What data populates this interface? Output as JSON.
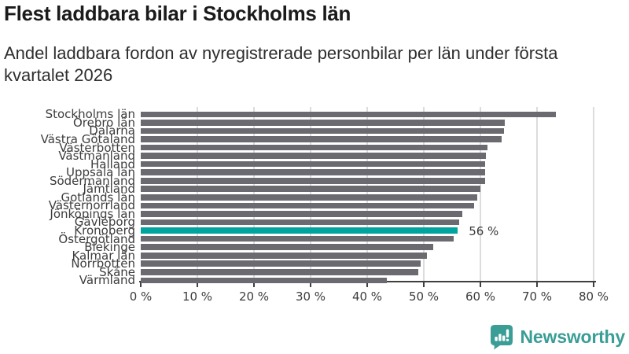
{
  "header": {
    "title": "Flest laddbara bilar i Stockholms län",
    "subtitle": "Andel laddbara fordon av nyregistrerade personbilar per län under första kvartalet 2026"
  },
  "chart_data": {
    "type": "bar",
    "orientation": "horizontal",
    "title": "Flest laddbara bilar i Stockholms län",
    "subtitle": "Andel laddbara fordon av nyregistrerade personbilar per län under första kvartalet 2026",
    "xlabel": "",
    "ylabel": "",
    "xlim": [
      0,
      80
    ],
    "grid": true,
    "x_ticks": [
      "0 %",
      "10 %",
      "20 %",
      "30 %",
      "40 %",
      "50 %",
      "60 %",
      "70 %",
      "80 %"
    ],
    "categories": [
      "Stockholms län",
      "Örebro län",
      "Dalarna",
      "Västra Götaland",
      "Västerbotten",
      "Västmanland",
      "Halland",
      "Uppsala län",
      "Södermanland",
      "Jämtland",
      "Gotlands län",
      "Västernorrland",
      "Jönköpings län",
      "Gävleborg",
      "Kronoberg",
      "Östergötland",
      "Blekinge",
      "Kalmar län",
      "Norrbotten",
      "Skåne",
      "Värmland"
    ],
    "values": [
      73.4,
      64.3,
      64.1,
      63.8,
      61.2,
      61.0,
      60.9,
      60.8,
      60.8,
      60.0,
      59.5,
      58.9,
      56.8,
      56.3,
      56.0,
      55.3,
      51.7,
      50.6,
      49.5,
      49.0,
      43.5
    ],
    "bar_color": "#6a6a70",
    "highlight": {
      "category": "Kronoberg",
      "index": 14,
      "value": 56.0,
      "label": "56 %",
      "color": "#00a39e"
    },
    "axis_color": "#3f3f3f",
    "gridline_color": "#dcdcdc"
  },
  "footer": {
    "brand": "Newsworthy",
    "brand_color": "#3a9d96",
    "logo_icon": "bar-chart-speech-bubble-icon"
  }
}
